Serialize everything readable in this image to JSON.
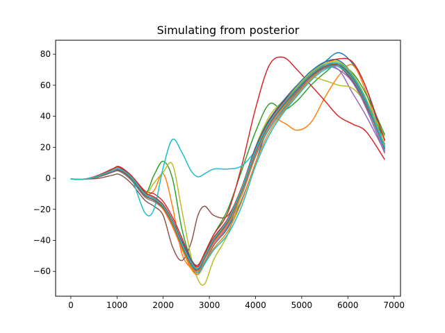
{
  "chart_data": {
    "type": "line",
    "title": "Simulating from posterior",
    "xlabel": "",
    "ylabel": "",
    "xlim": [
      -330,
      7140
    ],
    "ylim": [
      -76,
      89
    ],
    "xticks": [
      0,
      1000,
      2000,
      3000,
      4000,
      5000,
      6000,
      7000
    ],
    "yticks": [
      -60,
      -40,
      -20,
      0,
      20,
      40,
      60,
      80
    ],
    "xtick_labels": [
      "0",
      "1000",
      "2000",
      "3000",
      "4000",
      "5000",
      "6000",
      "7000"
    ],
    "ytick_labels": [
      "−60",
      "−40",
      "−20",
      "0",
      "20",
      "40",
      "60",
      "80"
    ],
    "grid": false,
    "legend": "none",
    "num_series": 40,
    "x": [
      0,
      300,
      600,
      900,
      1050,
      1300,
      1600,
      1800,
      2000,
      2200,
      2400,
      2600,
      2750,
      2900,
      3100,
      3400,
      3700,
      4000,
      4300,
      4600,
      4900,
      5200,
      5500,
      5800,
      6100,
      6400,
      6800
    ],
    "series": [
      {
        "color": "#1f77b4",
        "values": [
          -0.5,
          -0.5,
          1.5,
          5,
          6,
          1,
          -10,
          -13,
          -18,
          -28,
          -42,
          -55,
          -60,
          -54,
          -43,
          -32,
          -14,
          10,
          35,
          48,
          58,
          68,
          75,
          81,
          74,
          58,
          20
        ]
      },
      {
        "color": "#ff7f0e",
        "values": [
          -0.5,
          -0.5,
          1.5,
          5,
          5.5,
          0,
          -10,
          -8,
          3,
          -18,
          -48,
          -58,
          -62,
          -55,
          -43,
          -30,
          -10,
          15,
          38,
          36,
          31,
          36,
          52,
          66,
          73,
          55,
          17
        ]
      },
      {
        "color": "#2ca02c",
        "values": [
          -0.5,
          -0.5,
          1.5,
          5,
          6,
          1,
          -10,
          2,
          11,
          0,
          -32,
          -52,
          -58,
          -48,
          -36,
          -20,
          5,
          30,
          48,
          44,
          50,
          60,
          68,
          74,
          67,
          50,
          25
        ]
      },
      {
        "color": "#d62728",
        "values": [
          -0.5,
          -0.5,
          2,
          6,
          7.5,
          2,
          -8,
          -10,
          -15,
          -25,
          -38,
          -52,
          -56,
          -48,
          -36,
          -22,
          8,
          45,
          73,
          78,
          70,
          60,
          50,
          40,
          35,
          30,
          12
        ]
      },
      {
        "color": "#9467bd",
        "values": [
          -0.5,
          -0.5,
          1.5,
          5,
          6,
          1,
          -10,
          -13,
          -18,
          -28,
          -42,
          -54,
          -58,
          -50,
          -40,
          -28,
          -8,
          18,
          36,
          48,
          58,
          67,
          72,
          70,
          55,
          40,
          17
        ]
      },
      {
        "color": "#8c564b",
        "values": [
          -0.5,
          -0.5,
          0,
          2,
          2.5,
          -3,
          -14,
          -18,
          -24,
          -44,
          -53,
          -42,
          -24,
          -18,
          -24,
          -24,
          -6,
          20,
          38,
          48,
          58,
          66,
          71,
          72,
          62,
          46,
          22
        ]
      },
      {
        "color": "#e377c2",
        "values": [
          -0.5,
          -0.5,
          1.5,
          5,
          5.5,
          0,
          -11,
          -14,
          -19,
          -30,
          -44,
          -56,
          -60,
          -52,
          -42,
          -30,
          -10,
          15,
          33,
          45,
          56,
          65,
          72,
          73,
          64,
          48,
          19
        ]
      },
      {
        "color": "#7f7f7f",
        "values": [
          -0.5,
          -0.5,
          1,
          4,
          4.5,
          -1,
          -12,
          -15,
          -20,
          -31,
          -45,
          -57,
          -61,
          -54,
          -43,
          -31,
          -11,
          14,
          32,
          44,
          55,
          64,
          71,
          73,
          64,
          48,
          19
        ]
      },
      {
        "color": "#bcbd22",
        "values": [
          -0.5,
          -0.5,
          1.5,
          5,
          6,
          1,
          -10,
          -3,
          4,
          9,
          -20,
          -50,
          -65,
          -68,
          -52,
          -36,
          -10,
          20,
          40,
          50,
          60,
          65,
          63,
          60,
          58,
          48,
          27
        ]
      },
      {
        "color": "#17becf",
        "values": [
          -0.5,
          -0.5,
          1.5,
          5,
          6,
          1,
          -22,
          -20,
          7,
          25,
          17,
          5,
          1,
          3,
          6,
          6,
          8,
          18,
          32,
          45,
          56,
          66,
          72,
          74,
          66,
          50,
          21
        ]
      },
      {
        "color": "#1f77b4",
        "values": [
          -0.5,
          -0.5,
          2,
          6,
          7,
          1.5,
          -9,
          -12,
          -17,
          -27,
          -40,
          -52,
          -57,
          -49,
          -38,
          -26,
          -6,
          20,
          38,
          50,
          60,
          69,
          75,
          76,
          67,
          50,
          21
        ]
      },
      {
        "color": "#ff7f0e",
        "values": [
          -0.5,
          -0.5,
          1.5,
          5,
          6,
          0.5,
          -11,
          -14,
          -20,
          -31,
          -45,
          -58,
          -62,
          -55,
          -45,
          -34,
          -15,
          10,
          30,
          43,
          54,
          64,
          71,
          74,
          66,
          50,
          20
        ]
      },
      {
        "color": "#2ca02c",
        "values": [
          -0.5,
          -0.5,
          1,
          4,
          5,
          0,
          -11,
          -14,
          -19,
          -29,
          -43,
          -55,
          -59,
          -51,
          -40,
          -28,
          -8,
          17,
          36,
          47,
          57,
          66,
          72,
          73,
          68,
          54,
          28
        ]
      },
      {
        "color": "#d62728",
        "values": [
          -0.5,
          -0.5,
          2,
          6,
          7,
          2,
          -9,
          -12,
          -17,
          -27,
          -41,
          -53,
          -57,
          -49,
          -38,
          -26,
          -6,
          19,
          37,
          49,
          59,
          68,
          74,
          77,
          75,
          58,
          24
        ]
      },
      {
        "color": "#9467bd",
        "values": [
          -0.5,
          -0.5,
          1.5,
          5,
          6,
          1,
          -10,
          -13,
          -18,
          -28,
          -42,
          -54,
          -58,
          -50,
          -39,
          -27,
          -7,
          18,
          36,
          48,
          58,
          67,
          72,
          70,
          62,
          45,
          16
        ]
      },
      {
        "color": "#8c564b",
        "values": [
          -0.5,
          -0.5,
          1.5,
          5,
          5.5,
          0.5,
          -10,
          -13,
          -18,
          -29,
          -43,
          -55,
          -59,
          -51,
          -40,
          -28,
          -8,
          17,
          35,
          47,
          57,
          66,
          71,
          72,
          63,
          47,
          18
        ]
      },
      {
        "color": "#e377c2",
        "values": [
          -0.5,
          -0.5,
          1.5,
          5,
          6,
          1,
          -10,
          -13,
          -18,
          -28,
          -42,
          -54,
          -58,
          -50,
          -39,
          -27,
          -7,
          18,
          36,
          48,
          58,
          67,
          73,
          74,
          66,
          50,
          20
        ]
      },
      {
        "color": "#7f7f7f",
        "values": [
          -0.5,
          -0.5,
          1,
          4,
          5,
          0,
          -11,
          -14,
          -19,
          -30,
          -44,
          -56,
          -60,
          -52,
          -41,
          -29,
          -9,
          16,
          34,
          46,
          56,
          65,
          71,
          72,
          64,
          48,
          19
        ]
      },
      {
        "color": "#bcbd22",
        "values": [
          -0.5,
          -0.5,
          1.5,
          5,
          6,
          1,
          -10,
          -13,
          -18,
          -28,
          -42,
          -54,
          -58,
          -50,
          -39,
          -27,
          -7,
          18,
          36,
          48,
          59,
          68,
          74,
          75,
          67,
          51,
          21
        ]
      },
      {
        "color": "#17becf",
        "values": [
          -0.5,
          -0.5,
          1.5,
          5,
          6,
          1,
          -10,
          -13,
          -18,
          -29,
          -43,
          -56,
          -61,
          -55,
          -46,
          -36,
          -18,
          8,
          28,
          42,
          53,
          63,
          70,
          72,
          64,
          48,
          18
        ]
      },
      {
        "color": "#1f77b4",
        "values": [
          -0.5,
          -0.5,
          1.5,
          5,
          6,
          1,
          -10,
          -13,
          -18,
          -28,
          -42,
          -54,
          -58,
          -50,
          -39,
          -27,
          -7,
          18,
          36,
          48,
          58,
          67,
          73,
          74,
          66,
          50,
          20
        ]
      },
      {
        "color": "#ff7f0e",
        "values": [
          -0.5,
          -0.5,
          1.5,
          5,
          6,
          1,
          -10,
          -13,
          -19,
          -30,
          -45,
          -57,
          -60,
          -52,
          -41,
          -29,
          -9,
          16,
          34,
          46,
          57,
          66,
          72,
          73,
          65,
          49,
          19
        ]
      },
      {
        "color": "#2ca02c",
        "values": [
          -0.5,
          -0.5,
          1.5,
          5,
          6,
          1,
          -10,
          -13,
          -18,
          -28,
          -42,
          -54,
          -58,
          -50,
          -39,
          -27,
          -7,
          18,
          36,
          48,
          58,
          67,
          73,
          74,
          66,
          50,
          20
        ]
      },
      {
        "color": "#d62728",
        "values": [
          -0.5,
          -0.5,
          1.5,
          5,
          6,
          1,
          -10,
          -13,
          -18,
          -28,
          -42,
          -54,
          -58,
          -50,
          -39,
          -27,
          -7,
          18,
          36,
          48,
          58,
          67,
          73,
          74,
          66,
          50,
          20
        ]
      },
      {
        "color": "#9467bd",
        "values": [
          -0.5,
          -0.5,
          1,
          4,
          5,
          0,
          -11,
          -14,
          -19,
          -29,
          -43,
          -55,
          -59,
          -51,
          -40,
          -28,
          -8,
          17,
          35,
          47,
          57,
          66,
          72,
          73,
          65,
          49,
          19
        ]
      },
      {
        "color": "#8c564b",
        "values": [
          -0.5,
          -0.5,
          1.5,
          5,
          6,
          1,
          -10,
          -13,
          -18,
          -28,
          -42,
          -54,
          -58,
          -50,
          -39,
          -27,
          -7,
          18,
          36,
          48,
          58,
          67,
          73,
          74,
          66,
          50,
          20
        ]
      },
      {
        "color": "#e377c2",
        "values": [
          -0.5,
          -0.5,
          1.5,
          5,
          6,
          1,
          -10,
          -13,
          -18,
          -28,
          -42,
          -54,
          -58,
          -50,
          -39,
          -27,
          -7,
          18,
          36,
          48,
          58,
          67,
          73,
          74,
          66,
          50,
          20
        ]
      },
      {
        "color": "#7f7f7f",
        "values": [
          -0.5,
          -0.5,
          1.5,
          5,
          6,
          1,
          -10,
          -13,
          -18,
          -28,
          -42,
          -54,
          -58,
          -50,
          -39,
          -27,
          -7,
          18,
          36,
          48,
          58,
          67,
          73,
          74,
          66,
          50,
          20
        ]
      },
      {
        "color": "#bcbd22",
        "values": [
          -0.5,
          -0.5,
          1.5,
          5,
          6,
          1,
          -10,
          -13,
          -18,
          -28,
          -42,
          -54,
          -58,
          -50,
          -39,
          -27,
          -7,
          18,
          36,
          48,
          58,
          67,
          73,
          74,
          66,
          50,
          20
        ]
      },
      {
        "color": "#17becf",
        "values": [
          -0.5,
          -0.5,
          1.5,
          5,
          6,
          1,
          -10,
          -13,
          -18,
          -28,
          -42,
          -54,
          -58,
          -50,
          -39,
          -27,
          -7,
          18,
          36,
          48,
          58,
          67,
          73,
          74,
          66,
          50,
          20
        ]
      },
      {
        "color": "#1f77b4",
        "values": [
          -0.5,
          -0.5,
          1,
          4,
          5,
          0,
          -11,
          -14,
          -19,
          -29,
          -43,
          -55,
          -59,
          -51,
          -40,
          -28,
          -8,
          17,
          35,
          47,
          57,
          66,
          72,
          73,
          65,
          49,
          19
        ]
      },
      {
        "color": "#ff7f0e",
        "values": [
          -0.5,
          -0.5,
          1.5,
          5,
          6,
          1,
          -10,
          -13,
          -18,
          -28,
          -42,
          -54,
          -58,
          -50,
          -39,
          -27,
          -7,
          18,
          36,
          48,
          58,
          67,
          73,
          74,
          66,
          50,
          20
        ]
      },
      {
        "color": "#2ca02c",
        "values": [
          -0.5,
          -0.5,
          1.5,
          5,
          6,
          1,
          -10,
          -13,
          -18,
          -28,
          -42,
          -54,
          -58,
          -50,
          -39,
          -27,
          -7,
          18,
          36,
          48,
          58,
          67,
          73,
          74,
          66,
          50,
          20
        ]
      },
      {
        "color": "#d62728",
        "values": [
          -0.5,
          -0.5,
          1.5,
          5,
          6,
          1,
          -10,
          -13,
          -18,
          -28,
          -42,
          -54,
          -58,
          -50,
          -39,
          -27,
          -7,
          18,
          36,
          48,
          58,
          67,
          73,
          74,
          66,
          50,
          20
        ]
      },
      {
        "color": "#9467bd",
        "values": [
          -0.5,
          -0.5,
          1.5,
          5,
          6,
          1,
          -10,
          -13,
          -18,
          -28,
          -42,
          -54,
          -58,
          -50,
          -39,
          -27,
          -7,
          18,
          36,
          48,
          58,
          67,
          73,
          74,
          66,
          50,
          20
        ]
      },
      {
        "color": "#8c564b",
        "values": [
          -0.5,
          -0.5,
          1,
          4,
          5,
          0,
          -11,
          -14,
          -19,
          -29,
          -43,
          -55,
          -59,
          -51,
          -40,
          -28,
          -8,
          17,
          35,
          47,
          57,
          66,
          72,
          73,
          65,
          49,
          19
        ]
      },
      {
        "color": "#e377c2",
        "values": [
          -0.5,
          -0.5,
          1.5,
          5,
          6,
          1,
          -10,
          -13,
          -18,
          -28,
          -42,
          -54,
          -58,
          -50,
          -39,
          -27,
          -7,
          18,
          36,
          48,
          58,
          67,
          73,
          74,
          66,
          50,
          20
        ]
      },
      {
        "color": "#7f7f7f",
        "values": [
          -0.5,
          -0.5,
          1.5,
          5,
          6,
          1,
          -10,
          -13,
          -18,
          -28,
          -42,
          -54,
          -58,
          -50,
          -39,
          -27,
          -7,
          18,
          36,
          48,
          58,
          67,
          73,
          74,
          66,
          50,
          20
        ]
      },
      {
        "color": "#bcbd22",
        "values": [
          -0.5,
          -0.5,
          1.5,
          5,
          6,
          1,
          -10,
          -13,
          -18,
          -28,
          -42,
          -54,
          -58,
          -50,
          -39,
          -27,
          -7,
          18,
          36,
          48,
          58,
          67,
          73,
          74,
          66,
          50,
          20
        ]
      },
      {
        "color": "#17becf",
        "values": [
          -0.5,
          -0.5,
          1.5,
          5,
          6,
          1,
          -10,
          -13,
          -18,
          -28,
          -42,
          -54,
          -58,
          -50,
          -39,
          -27,
          -7,
          18,
          36,
          48,
          58,
          67,
          73,
          74,
          66,
          50,
          20
        ]
      }
    ]
  }
}
